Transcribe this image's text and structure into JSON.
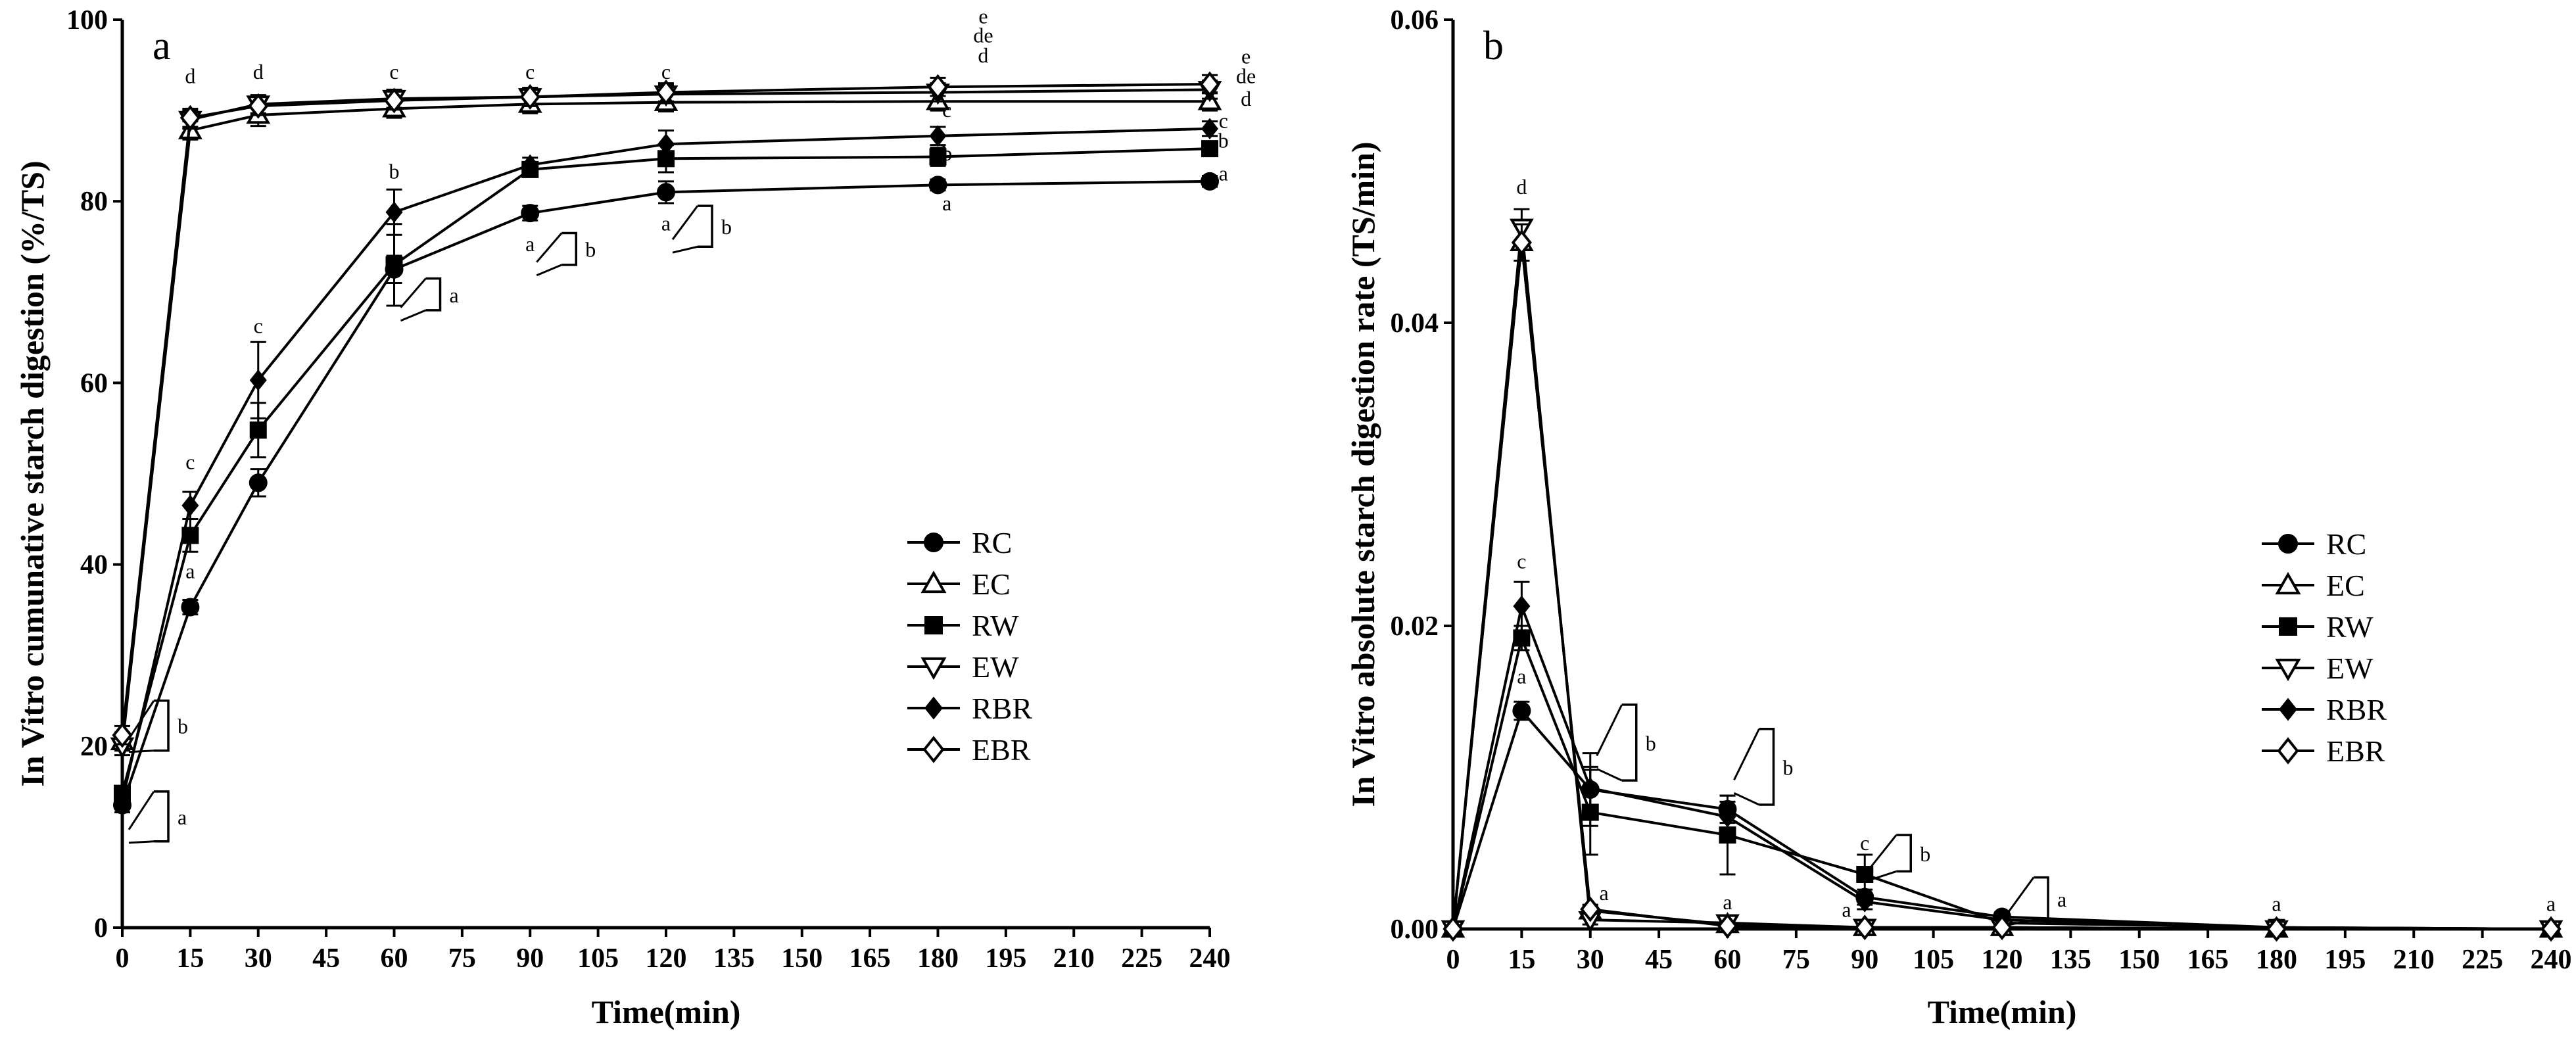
{
  "chart_data": [
    {
      "type": "line",
      "panel": "a",
      "ylabel": "In Vitro cumunative starch digestion (%/TS)",
      "xlabel": "Time(min)",
      "xlim": [
        0,
        240
      ],
      "ylim": [
        0,
        100
      ],
      "xticks": [
        0,
        15,
        30,
        45,
        60,
        75,
        90,
        105,
        120,
        135,
        150,
        165,
        180,
        195,
        210,
        225,
        240
      ],
      "yticks": [
        0,
        20,
        40,
        60,
        80,
        100
      ],
      "legend_position": "center-right",
      "series": [
        {
          "name": "RC",
          "marker": "circle",
          "x": [
            0,
            15,
            30,
            60,
            90,
            120,
            180,
            240
          ],
          "values": [
            13.5,
            35.3,
            49,
            72.5,
            78.7,
            81,
            81.8,
            82.2
          ],
          "err": [
            0.8,
            0.8,
            1.5,
            1.5,
            0.8,
            1.2,
            0.6,
            0.6
          ]
        },
        {
          "name": "EC",
          "marker": "triangle-up",
          "x": [
            0,
            15,
            30,
            60,
            90,
            120,
            180,
            240
          ],
          "values": [
            20.5,
            87.8,
            89.5,
            90.2,
            90.7,
            90.9,
            91,
            91
          ],
          "err": [
            1,
            1,
            1.2,
            1,
            1,
            1,
            1,
            1
          ]
        },
        {
          "name": "RW",
          "marker": "square",
          "x": [
            0,
            15,
            30,
            60,
            90,
            120,
            180,
            240
          ],
          "values": [
            14.8,
            43.2,
            54.8,
            73,
            83.5,
            84.7,
            84.9,
            85.8
          ],
          "err": [
            0.8,
            1.8,
            3,
            4.5,
            0.8,
            1.5,
            1,
            0.8
          ]
        },
        {
          "name": "EW",
          "marker": "triangle-down",
          "x": [
            0,
            15,
            30,
            60,
            90,
            120,
            180,
            240
          ],
          "values": [
            20,
            89,
            90.7,
            91.3,
            91.5,
            91.8,
            92,
            92.3
          ],
          "err": [
            1,
            1,
            1,
            1,
            1,
            1,
            1,
            1
          ]
        },
        {
          "name": "RBR",
          "marker": "diamond",
          "x": [
            0,
            15,
            30,
            60,
            90,
            120,
            180,
            240
          ],
          "values": [
            14,
            46.5,
            60.3,
            78.8,
            84,
            86.3,
            87.2,
            88
          ],
          "err": [
            0.8,
            1.5,
            4.2,
            2.5,
            0.8,
            1.5,
            1,
            0.8
          ]
        },
        {
          "name": "EBR",
          "marker": "diamond-open",
          "x": [
            0,
            15,
            30,
            60,
            90,
            120,
            180,
            240
          ],
          "values": [
            21.2,
            89.2,
            90.5,
            91.1,
            91.5,
            92,
            92.6,
            92.9
          ],
          "err": [
            1,
            1,
            1,
            1,
            1,
            1,
            1,
            1
          ]
        }
      ],
      "annotations": [
        {
          "text": "a",
          "x": 15,
          "y": 38.5
        },
        {
          "text": "c",
          "x": 15,
          "y": 50.5
        },
        {
          "text": "d",
          "x": 15,
          "y": 93
        },
        {
          "text": "c",
          "x": 30,
          "y": 65.5
        },
        {
          "text": "d",
          "x": 30,
          "y": 93.5
        },
        {
          "text": "b",
          "x": 60,
          "y": 82.5
        },
        {
          "text": "c",
          "x": 60,
          "y": 93.5
        },
        {
          "text": "c",
          "x": 90,
          "y": 93.5
        },
        {
          "text": "a",
          "x": 90,
          "y": 74.5
        },
        {
          "text": "c",
          "x": 120,
          "y": 93.5
        },
        {
          "text": "a",
          "x": 120,
          "y": 76.8
        },
        {
          "text": "a",
          "x": 182,
          "y": 79
        },
        {
          "text": "b",
          "x": 182,
          "y": 84.5
        },
        {
          "text": "c",
          "x": 182,
          "y": 89.3
        },
        {
          "text": "d",
          "x": 190,
          "y": 95.3
        },
        {
          "text": "de",
          "x": 190,
          "y": 97.5
        },
        {
          "text": "e",
          "x": 190,
          "y": 99.6
        },
        {
          "text": "a",
          "x": 243,
          "y": 82.3
        },
        {
          "text": "b",
          "x": 243,
          "y": 85.9
        },
        {
          "text": "c",
          "x": 243,
          "y": 88.1
        },
        {
          "text": "d",
          "x": 248,
          "y": 90.5
        },
        {
          "text": "de",
          "x": 248,
          "y": 93
        },
        {
          "text": "e",
          "x": 248,
          "y": 95.2
        }
      ],
      "brackets": [
        {
          "label": "a",
          "x": 60,
          "y_low": 68,
          "y_high": 71.5
        },
        {
          "label": "b",
          "x": 90,
          "y_low": 73,
          "y_high": 76.5
        },
        {
          "label": "b",
          "x": 120,
          "y_low": 75,
          "y_high": 79.5
        },
        {
          "label": "b",
          "x": 0,
          "y_low": 19.5,
          "y_high": 25
        },
        {
          "label": "a",
          "x": 0,
          "y_low": 9.5,
          "y_high": 15
        }
      ]
    },
    {
      "type": "line",
      "panel": "b",
      "ylabel": "In Vitro absolute starch digestion rate (TS/min)",
      "xlabel": "Time(min)",
      "xlim": [
        0,
        240
      ],
      "ylim": [
        0,
        0.06
      ],
      "xticks": [
        0,
        15,
        30,
        45,
        60,
        75,
        90,
        105,
        120,
        135,
        150,
        165,
        180,
        195,
        210,
        225,
        240
      ],
      "yticks": [
        0,
        0.02,
        0.04,
        0.06
      ],
      "ytick_labels": [
        "0.00",
        "0.02",
        "0.04",
        "0.06"
      ],
      "legend_position": "center-right",
      "series": [
        {
          "name": "RC",
          "marker": "circle",
          "x": [
            0,
            15,
            30,
            60,
            90,
            120,
            180,
            240
          ],
          "values": [
            0,
            0.0144,
            0.0092,
            0.0079,
            0.0021,
            0.0008,
            0.0001,
            0
          ],
          "err": [
            0,
            0.0006,
            0.0024,
            0.0009,
            0.0005,
            0.0003,
            0,
            0
          ]
        },
        {
          "name": "EC",
          "marker": "triangle-up",
          "x": [
            0,
            15,
            30,
            60,
            90,
            120,
            180,
            240
          ],
          "values": [
            0,
            0.0453,
            0.0012,
            0.0003,
            0.0001,
            0.0001,
            0,
            0
          ],
          "err": [
            0,
            0.0012,
            0.0003,
            0.0002,
            0.0001,
            0,
            0,
            0
          ]
        },
        {
          "name": "RW",
          "marker": "square",
          "x": [
            0,
            15,
            30,
            60,
            90,
            120,
            180,
            240
          ],
          "values": [
            0,
            0.0192,
            0.0077,
            0.0062,
            0.0036,
            0.0004,
            0.0001,
            0
          ],
          "err": [
            0,
            0.0008,
            0.0028,
            0.0026,
            0.0013,
            0.0003,
            0,
            0
          ]
        },
        {
          "name": "EW",
          "marker": "triangle-down",
          "x": [
            0,
            15,
            30,
            60,
            90,
            120,
            180,
            240
          ],
          "values": [
            0,
            0.0463,
            0.0006,
            0.0004,
            0.0001,
            0.0001,
            0,
            0
          ],
          "err": [
            0,
            0.0012,
            0.0003,
            0.0002,
            0.0001,
            0,
            0,
            0
          ]
        },
        {
          "name": "RBR",
          "marker": "diamond",
          "x": [
            0,
            15,
            30,
            60,
            90,
            120,
            180,
            240
          ],
          "values": [
            0,
            0.0213,
            0.0093,
            0.0074,
            0.0018,
            0.0006,
            0.0001,
            0
          ],
          "err": [
            0,
            0.0016,
            0.0014,
            0.001,
            0.0005,
            0.0003,
            0,
            0
          ]
        },
        {
          "name": "EBR",
          "marker": "diamond-open",
          "x": [
            0,
            15,
            30,
            60,
            90,
            120,
            180,
            240
          ],
          "values": [
            0,
            0.0453,
            0.0013,
            0.0002,
            0.0001,
            0.0001,
            0,
            0
          ],
          "err": [
            0,
            0.0012,
            0.0003,
            0.0002,
            0.0001,
            0,
            0,
            0
          ]
        }
      ],
      "annotations": [
        {
          "text": "d",
          "x": 15,
          "y": 0.0485
        },
        {
          "text": "c",
          "x": 15,
          "y": 0.0238
        },
        {
          "text": "a",
          "x": 15,
          "y": 0.0162
        },
        {
          "text": "a",
          "x": 33,
          "y": 0.0019
        },
        {
          "text": "a",
          "x": 60,
          "y": 0.0013
        },
        {
          "text": "c",
          "x": 90,
          "y": 0.0052
        },
        {
          "text": "a",
          "x": 86,
          "y": 0.0008
        },
        {
          "text": "a",
          "x": 180,
          "y": 0.0012
        },
        {
          "text": "a",
          "x": 240,
          "y": 0.0012
        }
      ],
      "brackets": [
        {
          "label": "b",
          "x": 30,
          "y_low": 0.0098,
          "y_high": 0.0148
        },
        {
          "label": "b",
          "x": 60,
          "y_low": 0.0082,
          "y_high": 0.0132
        },
        {
          "label": "b",
          "x": 90,
          "y_low": 0.0038,
          "y_high": 0.0062
        },
        {
          "label": "a",
          "x": 120,
          "y_low": 0.0006,
          "y_high": 0.0034
        }
      ]
    }
  ]
}
